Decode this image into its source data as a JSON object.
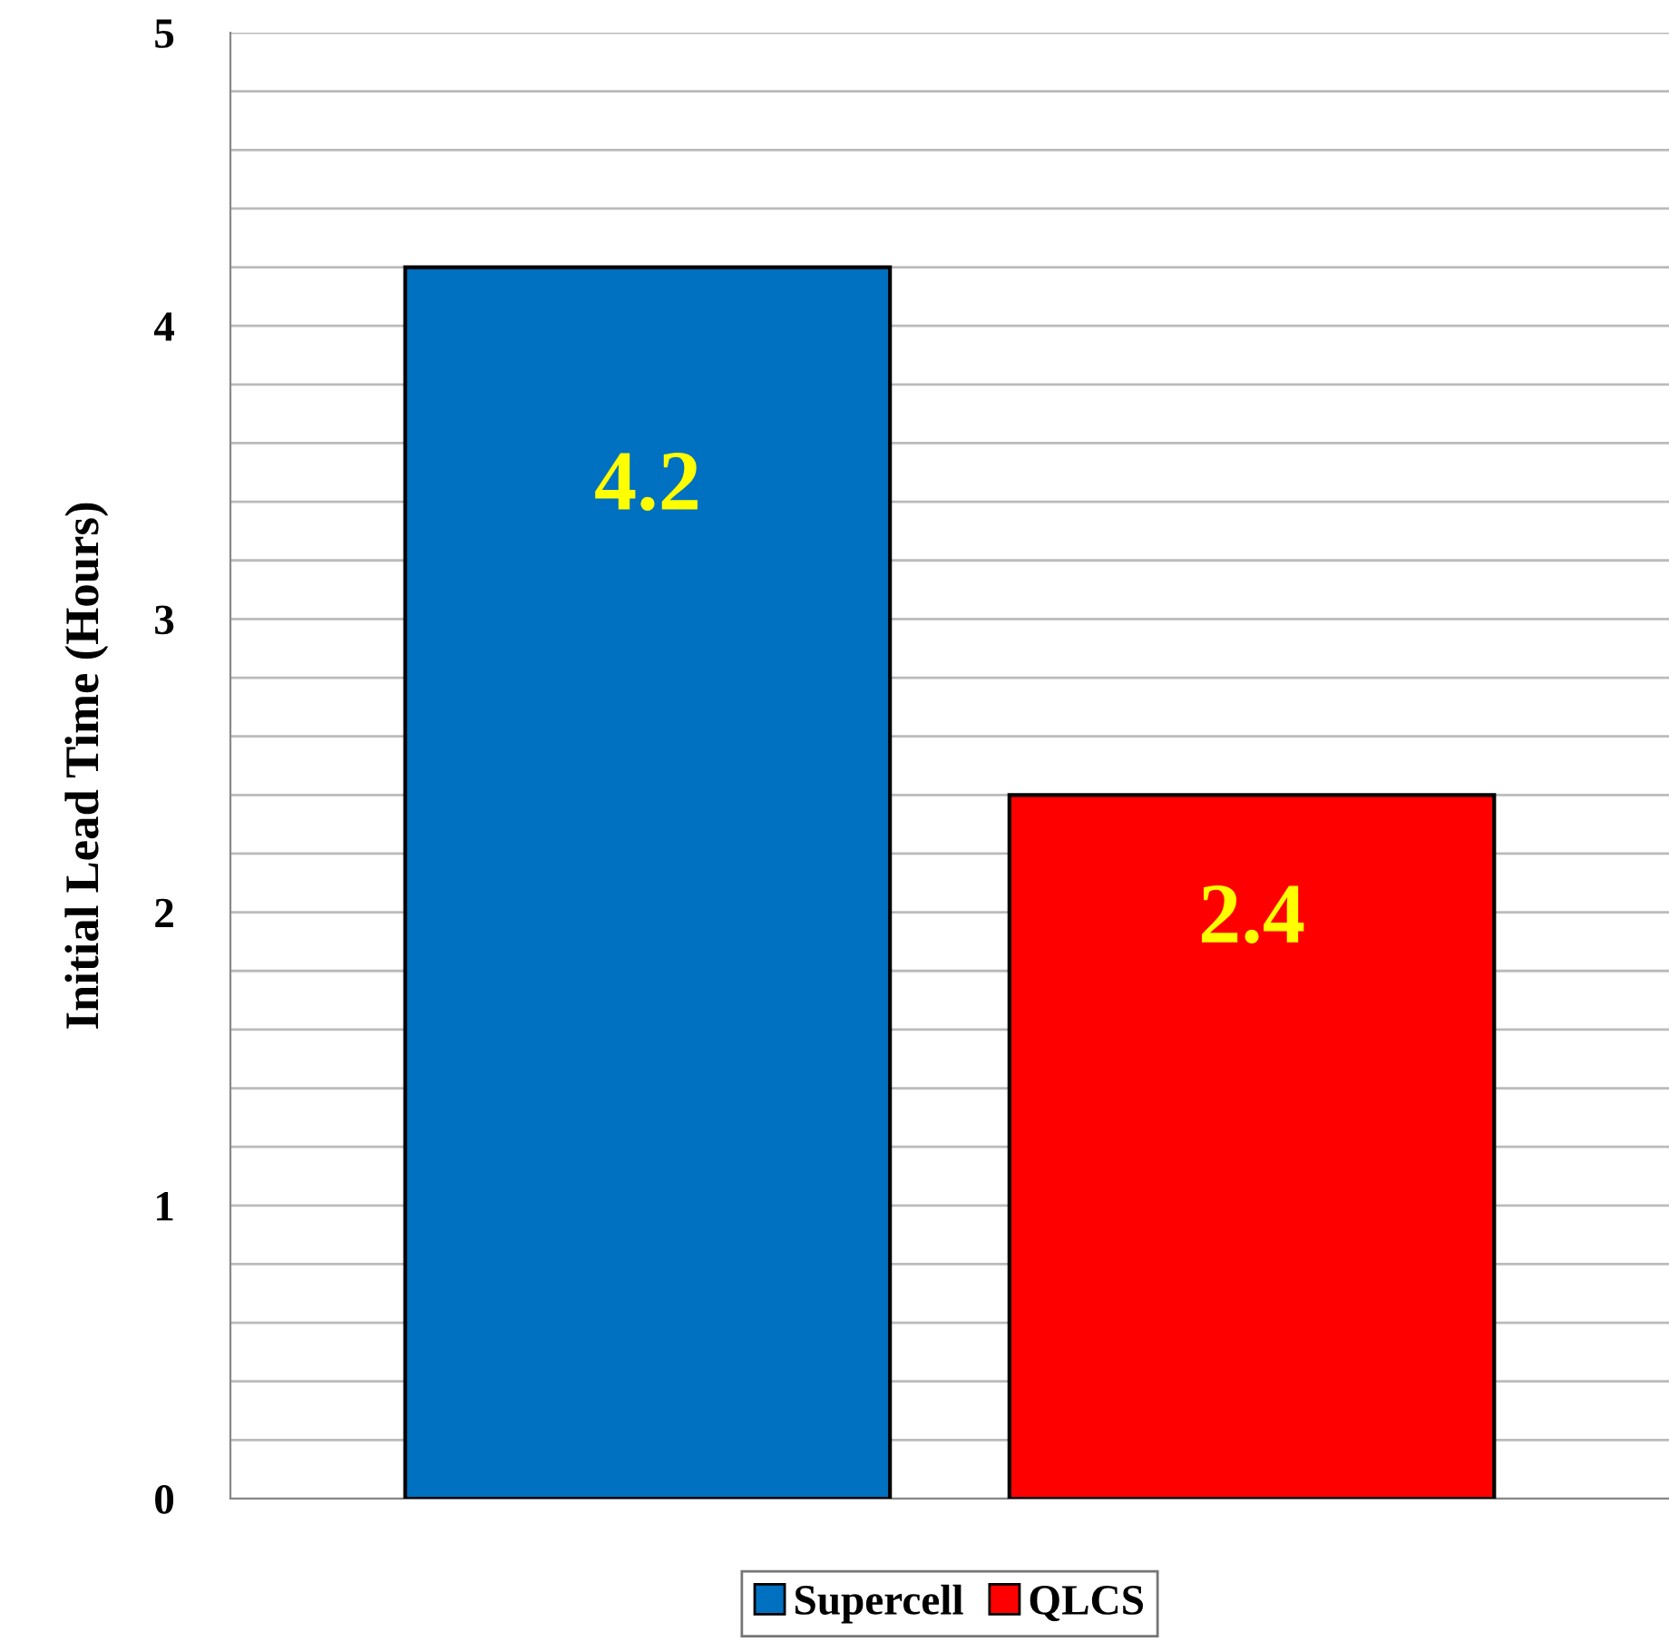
{
  "chart_data": {
    "type": "bar",
    "ylabel": "Initial Lead Time (Hours)",
    "categories": [
      null
    ],
    "series": [
      {
        "name": "Supercell",
        "color": "#0070c0",
        "values": [
          4.2
        ]
      },
      {
        "name": "QLCS",
        "color": "#ff0000",
        "values": [
          2.4
        ]
      }
    ],
    "ylim": [
      0,
      5
    ],
    "yticks": [
      0,
      {
        "value": 0.2,
        "label": null
      },
      {
        "value": 0.4,
        "label": null
      },
      {
        "value": 0.6,
        "label": null
      },
      {
        "value": 0.8,
        "label": null
      },
      1,
      {
        "value": 1.2,
        "label": null
      },
      {
        "value": 1.4,
        "label": null
      },
      {
        "value": 1.6,
        "label": null
      },
      {
        "value": 1.8,
        "label": null
      },
      2,
      {
        "value": 2.2,
        "label": null
      },
      {
        "value": 2.4,
        "label": null
      },
      {
        "value": 2.6,
        "label": null
      },
      {
        "value": 2.8,
        "label": null
      },
      3,
      {
        "value": 3.2,
        "label": null
      },
      {
        "value": 3.4,
        "label": null
      },
      {
        "value": 3.6,
        "label": null
      },
      {
        "value": 3.8,
        "label": null
      },
      4,
      {
        "value": 4.2,
        "label": null
      },
      {
        "value": 4.4,
        "label": null
      },
      {
        "value": 4.6,
        "label": null
      },
      {
        "value": 4.8,
        "label": null
      },
      5
    ],
    "grid": "y",
    "legend": "bottom",
    "data_labels": true
  }
}
